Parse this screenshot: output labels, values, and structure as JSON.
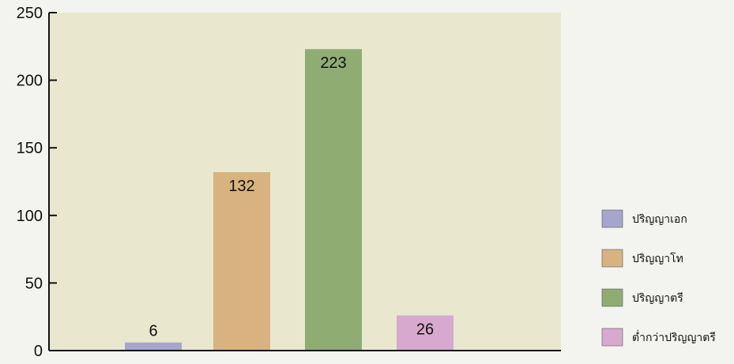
{
  "chart_data": {
    "type": "bar",
    "title": "",
    "xlabel": "",
    "ylabel": "",
    "ylim": [
      0,
      250
    ],
    "yticks": [
      0,
      50,
      100,
      150,
      200,
      250
    ],
    "grid": false,
    "legend_placement": "right",
    "categories": [
      "ปริญญาเอก",
      "ปริญญาโท",
      "ปริญญาตรี",
      "ต่ำกว่าปริญญาตรี"
    ],
    "values": [
      6,
      132,
      223,
      26
    ],
    "colors": [
      "#a6a6cc",
      "#d8b37f",
      "#8fad73",
      "#d7a9cf"
    ],
    "data_labels": [
      "6",
      "132",
      "223",
      "26"
    ]
  },
  "style": {
    "plot_background": "#e9e8cf",
    "page_background": "#f3f3ef",
    "axis_color": "#111111"
  }
}
